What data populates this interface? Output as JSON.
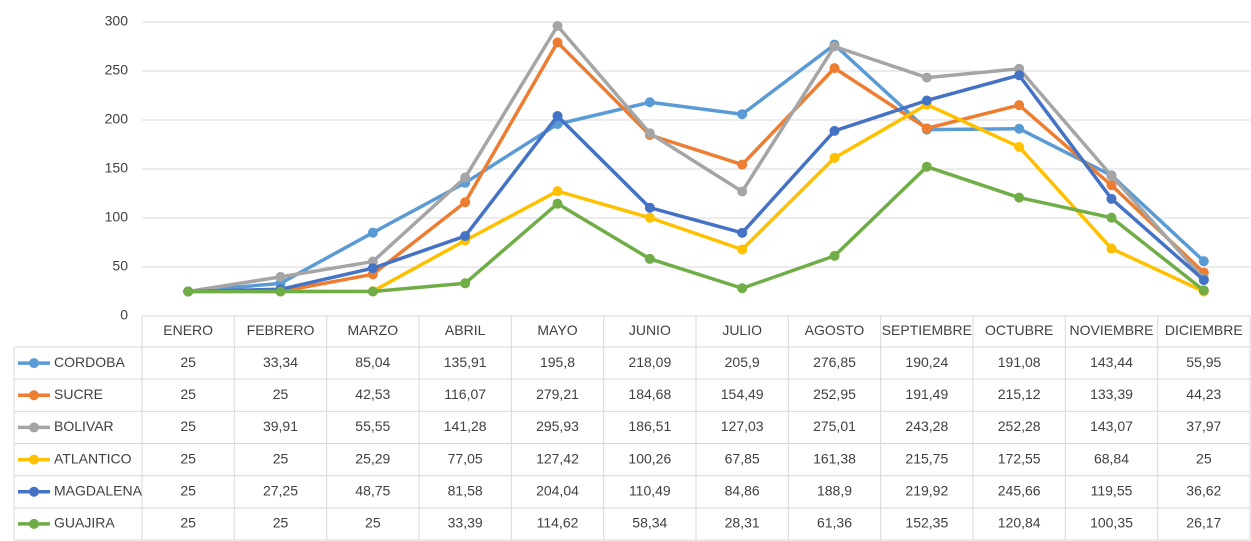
{
  "chart_data": {
    "type": "line",
    "categories": [
      "ENERO",
      "FEBRERO",
      "MARZO",
      "ABRIL",
      "MAYO",
      "JUNIO",
      "JULIO",
      "AGOSTO",
      "SEPTIEMBRE",
      "OCTUBRE",
      "NOVIEMBRE",
      "DICIEMBRE"
    ],
    "ylim": [
      0,
      300
    ],
    "yticks": [
      0,
      50,
      100,
      150,
      200,
      250,
      300
    ],
    "grid": true,
    "series": [
      {
        "name": "CORDOBA",
        "color": "#5b9bd5",
        "values": [
          25,
          33.34,
          85.04,
          135.91,
          195.8,
          218.09,
          205.9,
          276.85,
          190.24,
          191.08,
          143.44,
          55.95
        ],
        "value_labels": [
          "25",
          "33,34",
          "85,04",
          "135,91",
          "195,8",
          "218,09",
          "205,9",
          "276,85",
          "190,24",
          "191,08",
          "143,44",
          "55,95"
        ]
      },
      {
        "name": "SUCRE",
        "color": "#ed7d31",
        "values": [
          25,
          25,
          42.53,
          116.07,
          279.21,
          184.68,
          154.49,
          252.95,
          191.49,
          215.12,
          133.39,
          44.23
        ],
        "value_labels": [
          "25",
          "25",
          "42,53",
          "116,07",
          "279,21",
          "184,68",
          "154,49",
          "252,95",
          "191,49",
          "215,12",
          "133,39",
          "44,23"
        ]
      },
      {
        "name": "BOLIVAR",
        "color": "#a5a5a5",
        "values": [
          25,
          39.91,
          55.55,
          141.28,
          295.93,
          186.51,
          127.03,
          275.01,
          243.28,
          252.28,
          143.07,
          37.97
        ],
        "value_labels": [
          "25",
          "39,91",
          "55,55",
          "141,28",
          "295,93",
          "186,51",
          "127,03",
          "275,01",
          "243,28",
          "252,28",
          "143,07",
          "37,97"
        ]
      },
      {
        "name": "ATLANTICO",
        "color": "#ffc000",
        "values": [
          25,
          25,
          25.29,
          77.05,
          127.42,
          100.26,
          67.85,
          161.38,
          215.75,
          172.55,
          68.84,
          25
        ],
        "value_labels": [
          "25",
          "25",
          "25,29",
          "77,05",
          "127,42",
          "100,26",
          "67,85",
          "161,38",
          "215,75",
          "172,55",
          "68,84",
          "25"
        ]
      },
      {
        "name": "MAGDALENA",
        "color": "#4472c4",
        "values": [
          25,
          27.25,
          48.75,
          81.58,
          204.04,
          110.49,
          84.86,
          188.9,
          219.92,
          245.66,
          119.55,
          36.62
        ],
        "value_labels": [
          "25",
          "27,25",
          "48,75",
          "81,58",
          "204,04",
          "110,49",
          "84,86",
          "188,9",
          "219,92",
          "245,66",
          "119,55",
          "36,62"
        ]
      },
      {
        "name": "GUAJIRA",
        "color": "#70ad47",
        "values": [
          25,
          25,
          25,
          33.39,
          114.62,
          58.34,
          28.31,
          61.36,
          152.35,
          120.84,
          100.35,
          26.17
        ],
        "value_labels": [
          "25",
          "25",
          "25",
          "33,39",
          "114,62",
          "58,34",
          "28,31",
          "61,36",
          "152,35",
          "120,84",
          "100,35",
          "26,17"
        ]
      }
    ]
  }
}
